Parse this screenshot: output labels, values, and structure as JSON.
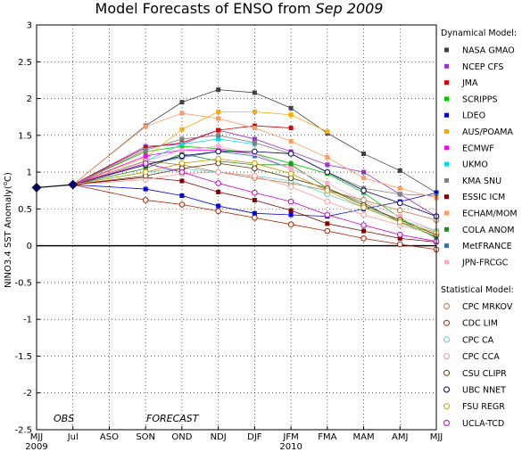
{
  "chart_data": {
    "type": "line",
    "title_main": "Model Forecasts of ENSO from ",
    "title_date": "Sep 2009",
    "ylabel_text": "NINO3.4 SST Anomaly(",
    "ylabel_unit_sup": "o",
    "ylabel_unit": "C)",
    "ylim": [
      -2.5,
      3
    ],
    "yticks": [
      "3",
      "2.5",
      "2",
      "1.5",
      "1",
      "0.5",
      "0",
      "-0.5",
      "-1",
      "-1.5",
      "-2",
      "-2.5"
    ],
    "ytick_values": [
      3,
      2.5,
      2,
      1.5,
      1,
      0.5,
      0,
      -0.5,
      -1,
      -1.5,
      -2,
      -2.5
    ],
    "categories": [
      "MJJ",
      "Jul",
      "ASO",
      "SON",
      "OND",
      "NDJ",
      "DJF",
      "JFM",
      "FMA",
      "MAM",
      "AMJ",
      "MJJ"
    ],
    "year_labels": [
      {
        "text": "2009",
        "at": 0
      },
      {
        "text": "2010",
        "at": 7
      }
    ],
    "obs_label": "OBS",
    "forecast_label": "FORECAST",
    "grid": true,
    "observed": {
      "x": [
        0,
        1
      ],
      "values": [
        0.79,
        0.83
      ],
      "color": "#000080"
    },
    "legend_dyn_title": "Dynamical Model:",
    "legend_stat_title": "Statistical Model:",
    "dynamical": [
      {
        "name": "NASA GMAO",
        "color": "#404040",
        "values": [
          1.63,
          1.95,
          2.12,
          2.08,
          1.87,
          1.53,
          1.25,
          1.02,
          0.72
        ]
      },
      {
        "name": "NCEP CFS",
        "color": "#9933cc",
        "values": [
          1.35,
          1.38,
          1.57,
          1.45,
          1.28,
          1.1,
          1.0,
          0.7,
          0.4
        ]
      },
      {
        "name": "JMA",
        "color": "#dd0000",
        "values": [
          1.33,
          1.4,
          1.57,
          1.63,
          1.6
        ]
      },
      {
        "name": "SCRIPPS",
        "color": "#00cc00",
        "values": [
          1.28,
          1.35,
          1.32,
          1.25,
          1.12,
          0.98,
          0.72,
          0.38,
          0.1
        ]
      },
      {
        "name": "LDEO",
        "color": "#0000dd",
        "values": [
          0.77,
          0.68,
          0.54,
          0.44,
          0.42,
          0.4,
          0.5,
          0.6,
          0.72
        ]
      },
      {
        "name": "AUS/POAMA",
        "color": "#ffaa00",
        "values": [
          1.2,
          1.58,
          1.82,
          1.82,
          1.78,
          1.55
        ]
      },
      {
        "name": "ECMWF",
        "color": "#ff00ff",
        "values": [
          1.22,
          1.3,
          1.3,
          1.25,
          1.05
        ]
      },
      {
        "name": "UKMO",
        "color": "#00dddd",
        "values": [
          1.15,
          1.38,
          1.45,
          1.38
        ]
      },
      {
        "name": "KMA SNU",
        "color": "#808080",
        "values": [
          1.3,
          1.45,
          1.5,
          1.4,
          1.25,
          1.0,
          0.78,
          0.7,
          0.68
        ]
      },
      {
        "name": "ESSIC ICM",
        "color": "#800000",
        "values": [
          0.93,
          0.88,
          0.73,
          0.62,
          0.48,
          0.3,
          0.2,
          0.1,
          0.05
        ]
      },
      {
        "name": "ECHAM/MOM",
        "color": "#ff9966",
        "values": [
          1.62,
          1.8,
          1.73,
          1.6,
          1.42,
          1.2,
          0.92,
          0.78,
          0.65
        ]
      },
      {
        "name": "COLA ANOM",
        "color": "#228B22",
        "values": [
          1.05,
          1.25,
          1.15,
          1.1,
          1.1,
          0.78,
          0.58,
          0.32,
          0.12
        ]
      },
      {
        "name": "MetFRANCE",
        "color": "#3377aa",
        "values": [
          1.1,
          1.2,
          1.28,
          1.22,
          1.05
        ]
      },
      {
        "name": "JPN-FRCGC",
        "color": "#ffaacc",
        "values": [
          1.15,
          1.3,
          1.35,
          1.25,
          1.05,
          0.85,
          0.6,
          0.4,
          0.2
        ]
      }
    ],
    "statistical": [
      {
        "name": "CPC MRKOV",
        "color": "#bb7744",
        "values": [
          1.15,
          1.1,
          1.0,
          0.92,
          0.85,
          0.75,
          0.62,
          0.48,
          0.35
        ]
      },
      {
        "name": "CDC LIM",
        "color": "#aa2200",
        "values": [
          0.62,
          0.56,
          0.47,
          0.38,
          0.29,
          0.2,
          0.1,
          0.02,
          -0.05
        ]
      },
      {
        "name": "CPC CA",
        "color": "#66cccc",
        "values": [
          1.0,
          1.05,
          1.0,
          0.95,
          0.88,
          0.7,
          0.52,
          0.35,
          0.2
        ]
      },
      {
        "name": "CPC CCA",
        "color": "#ff9999",
        "values": [
          0.9,
          0.98,
          1.0,
          0.95,
          0.8,
          0.6,
          0.42,
          0.28,
          0.15
        ]
      },
      {
        "name": "CSU CLIPR",
        "color": "#663300",
        "values": [
          0.95,
          1.05,
          1.12,
          1.05,
          0.92,
          0.78,
          0.55,
          0.35,
          0.15
        ]
      },
      {
        "name": "UBC NNET",
        "color": "#000066",
        "values": [
          1.1,
          1.22,
          1.28,
          1.28,
          1.25,
          1.0,
          0.75,
          0.58,
          0.4
        ]
      },
      {
        "name": "FSU REGR",
        "color": "#cc9900",
        "values": [
          1.0,
          1.12,
          1.18,
          1.12,
          0.98,
          0.75,
          0.52,
          0.32,
          0.18
        ]
      },
      {
        "name": "UCLA-TCD",
        "color": "#cc00cc",
        "values": [
          1.12,
          1.0,
          0.85,
          0.72,
          0.6,
          0.42,
          0.28,
          0.15,
          0.06
        ]
      }
    ],
    "forecast_start_index": 3
  }
}
